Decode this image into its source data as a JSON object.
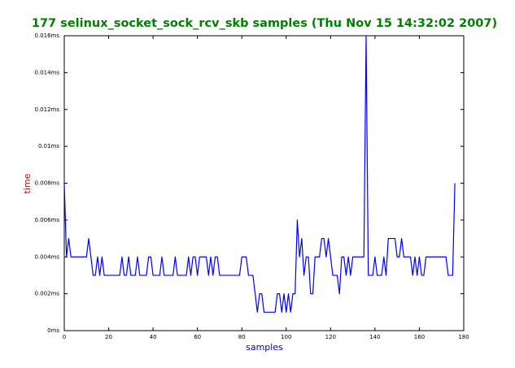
{
  "chart_data": {
    "type": "line",
    "title": "177 selinux_socket_sock_rcv_skb samples (Thu Nov 15 14:32:02 2007)",
    "title_color": "#008000",
    "xlabel": "samples",
    "xlabel_color": "#0000cc",
    "ylabel": "time",
    "ylabel_color": "#cc0000",
    "color": "#0000ff",
    "x": [
      0,
      1,
      2,
      3,
      4,
      5,
      6,
      7,
      8,
      9,
      10,
      11,
      12,
      13,
      14,
      15,
      16,
      17,
      18,
      19,
      20,
      21,
      22,
      23,
      24,
      25,
      26,
      27,
      28,
      29,
      30,
      31,
      32,
      33,
      34,
      35,
      36,
      37,
      38,
      39,
      40,
      41,
      42,
      43,
      44,
      45,
      46,
      47,
      48,
      49,
      50,
      51,
      52,
      53,
      54,
      55,
      56,
      57,
      58,
      59,
      60,
      61,
      62,
      63,
      64,
      65,
      66,
      67,
      68,
      69,
      70,
      71,
      72,
      73,
      74,
      75,
      76,
      77,
      78,
      79,
      80,
      81,
      82,
      83,
      84,
      85,
      86,
      87,
      88,
      89,
      90,
      91,
      92,
      93,
      94,
      95,
      96,
      97,
      98,
      99,
      100,
      101,
      102,
      103,
      104,
      105,
      106,
      107,
      108,
      109,
      110,
      111,
      112,
      113,
      114,
      115,
      116,
      117,
      118,
      119,
      120,
      121,
      122,
      123,
      124,
      125,
      126,
      127,
      128,
      129,
      130,
      131,
      132,
      133,
      134,
      135,
      136,
      137,
      138,
      139,
      140,
      141,
      142,
      143,
      144,
      145,
      146,
      147,
      148,
      149,
      150,
      151,
      152,
      153,
      154,
      155,
      156,
      157,
      158,
      159,
      160,
      161,
      162,
      163,
      164,
      165,
      166,
      167,
      168,
      169,
      170,
      171,
      172,
      173,
      174,
      175,
      176
    ],
    "values": [
      0.008,
      0.004,
      0.005,
      0.004,
      0.004,
      0.004,
      0.004,
      0.004,
      0.004,
      0.004,
      0.004,
      0.005,
      0.004,
      0.003,
      0.003,
      0.004,
      0.003,
      0.004,
      0.003,
      0.003,
      0.003,
      0.003,
      0.003,
      0.003,
      0.003,
      0.003,
      0.004,
      0.003,
      0.003,
      0.004,
      0.003,
      0.003,
      0.003,
      0.004,
      0.003,
      0.003,
      0.003,
      0.003,
      0.004,
      0.004,
      0.003,
      0.003,
      0.003,
      0.003,
      0.004,
      0.003,
      0.003,
      0.003,
      0.003,
      0.003,
      0.004,
      0.003,
      0.003,
      0.003,
      0.003,
      0.003,
      0.004,
      0.003,
      0.004,
      0.004,
      0.003,
      0.004,
      0.004,
      0.004,
      0.004,
      0.003,
      0.004,
      0.003,
      0.004,
      0.004,
      0.003,
      0.003,
      0.003,
      0.003,
      0.003,
      0.003,
      0.003,
      0.003,
      0.003,
      0.003,
      0.004,
      0.004,
      0.004,
      0.003,
      0.003,
      0.003,
      0.002,
      0.001,
      0.002,
      0.002,
      0.001,
      0.001,
      0.001,
      0.001,
      0.001,
      0.001,
      0.002,
      0.002,
      0.001,
      0.002,
      0.001,
      0.002,
      0.001,
      0.002,
      0.002,
      0.006,
      0.004,
      0.005,
      0.003,
      0.004,
      0.004,
      0.002,
      0.002,
      0.004,
      0.004,
      0.004,
      0.005,
      0.005,
      0.004,
      0.005,
      0.004,
      0.003,
      0.003,
      0.003,
      0.002,
      0.004,
      0.004,
      0.003,
      0.004,
      0.003,
      0.004,
      0.004,
      0.004,
      0.004,
      0.004,
      0.004,
      0.016,
      0.003,
      0.003,
      0.003,
      0.004,
      0.003,
      0.003,
      0.003,
      0.004,
      0.003,
      0.005,
      0.005,
      0.005,
      0.005,
      0.004,
      0.004,
      0.005,
      0.004,
      0.004,
      0.004,
      0.004,
      0.003,
      0.004,
      0.003,
      0.004,
      0.003,
      0.003,
      0.004,
      0.004,
      0.004,
      0.004,
      0.004,
      0.004,
      0.004,
      0.004,
      0.004,
      0.004,
      0.003,
      0.003,
      0.003,
      0.008
    ],
    "xlim": [
      0,
      180
    ],
    "xticks": [
      0,
      20,
      40,
      60,
      80,
      100,
      120,
      140,
      160,
      180
    ],
    "ylim": [
      0,
      0.016
    ],
    "yticks": [
      {
        "value": 0,
        "label": "0ms"
      },
      {
        "value": 0.002,
        "label": "0.002ms"
      },
      {
        "value": 0.004,
        "label": "0.004ms"
      },
      {
        "value": 0.006,
        "label": "0.006ms"
      },
      {
        "value": 0.008,
        "label": "0.008ms"
      },
      {
        "value": 0.01,
        "label": "0.01ms"
      },
      {
        "value": 0.012,
        "label": "0.012ms"
      },
      {
        "value": 0.014,
        "label": "0.014ms"
      },
      {
        "value": 0.016,
        "label": "0.016ms"
      }
    ]
  }
}
